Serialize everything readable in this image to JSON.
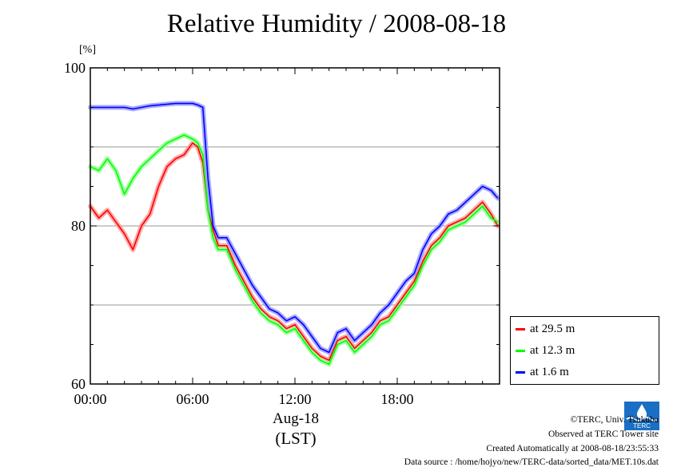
{
  "title": "Relative Humidity / 2008-08-18",
  "y_unit": "[%]",
  "x_date_label": "Aug-18",
  "x_timezone_label": "(LST)",
  "footer": {
    "copyright": "©TERC, Univ. Tsukuba",
    "observed": "Observed at TERC Tower site",
    "created": "Created Automatically at 2008-08-18/23:55:33",
    "source": "Data source : /home/hojyo/new/TERC-data/sorted_data/MET.10s.dat",
    "logo_text": "TERC"
  },
  "chart_data": {
    "type": "line",
    "title": "Relative Humidity / 2008-08-18",
    "xlabel": "Aug-18 (LST)",
    "ylabel": "[%]",
    "xlim": [
      0,
      24
    ],
    "ylim": [
      60,
      100
    ],
    "x_unit": "hours",
    "xticks": [
      "00:00",
      "06:00",
      "12:00",
      "18:00"
    ],
    "yticks": [
      60,
      80,
      100
    ],
    "grid": "horizontal",
    "legend_position": "bottom-right",
    "x": [
      0.0,
      0.5,
      1.0,
      1.5,
      2.0,
      2.5,
      3.0,
      3.5,
      4.0,
      4.5,
      5.0,
      5.5,
      6.0,
      6.3,
      6.6,
      6.9,
      7.2,
      7.5,
      8.0,
      8.5,
      9.0,
      9.5,
      10.0,
      10.5,
      11.0,
      11.5,
      12.0,
      12.5,
      13.0,
      13.5,
      14.0,
      14.5,
      15.0,
      15.5,
      16.0,
      16.5,
      17.0,
      17.5,
      18.0,
      18.5,
      19.0,
      19.5,
      20.0,
      20.5,
      21.0,
      21.5,
      22.0,
      22.5,
      23.0,
      23.5,
      23.9
    ],
    "series": [
      {
        "name": "at 29.5 m",
        "color": "#ff0000",
        "values": [
          82.5,
          81.0,
          82.0,
          80.5,
          79.0,
          77.0,
          80.0,
          81.5,
          85.0,
          87.5,
          88.5,
          89.0,
          90.5,
          90.0,
          88.0,
          82.0,
          79.5,
          77.5,
          77.5,
          75.0,
          73.0,
          71.0,
          69.5,
          68.5,
          68.0,
          67.0,
          67.5,
          66.0,
          64.5,
          63.5,
          63.0,
          65.5,
          66.0,
          64.5,
          65.5,
          66.5,
          68.0,
          68.5,
          70.0,
          71.5,
          73.0,
          75.5,
          77.5,
          78.5,
          80.0,
          80.5,
          81.0,
          82.0,
          83.0,
          81.5,
          80.0
        ]
      },
      {
        "name": "at 12.3 m",
        "color": "#00ff00",
        "values": [
          87.5,
          87.0,
          88.5,
          87.0,
          84.0,
          86.0,
          87.5,
          88.5,
          89.5,
          90.5,
          91.0,
          91.5,
          91.0,
          90.5,
          89.0,
          82.0,
          78.5,
          77.0,
          77.0,
          74.5,
          72.5,
          70.5,
          69.0,
          68.0,
          67.5,
          66.5,
          67.0,
          65.5,
          64.0,
          63.0,
          62.5,
          65.0,
          65.5,
          64.0,
          65.0,
          66.0,
          67.5,
          68.0,
          69.5,
          71.0,
          72.5,
          75.0,
          77.0,
          78.0,
          79.5,
          80.0,
          80.5,
          81.5,
          82.5,
          81.0,
          80.5
        ]
      },
      {
        "name": "at 1.6 m",
        "color": "#0000ff",
        "values": [
          95.0,
          95.0,
          95.0,
          95.0,
          95.0,
          94.8,
          95.0,
          95.2,
          95.3,
          95.4,
          95.5,
          95.5,
          95.5,
          95.3,
          95.0,
          86.0,
          80.0,
          78.5,
          78.5,
          76.5,
          74.5,
          72.5,
          71.0,
          69.5,
          69.0,
          68.0,
          68.5,
          67.5,
          66.0,
          64.5,
          64.0,
          66.5,
          67.0,
          65.5,
          66.5,
          67.5,
          69.0,
          70.0,
          71.5,
          73.0,
          74.0,
          77.0,
          79.0,
          80.0,
          81.5,
          82.0,
          83.0,
          84.0,
          85.0,
          84.5,
          83.5
        ]
      }
    ]
  }
}
